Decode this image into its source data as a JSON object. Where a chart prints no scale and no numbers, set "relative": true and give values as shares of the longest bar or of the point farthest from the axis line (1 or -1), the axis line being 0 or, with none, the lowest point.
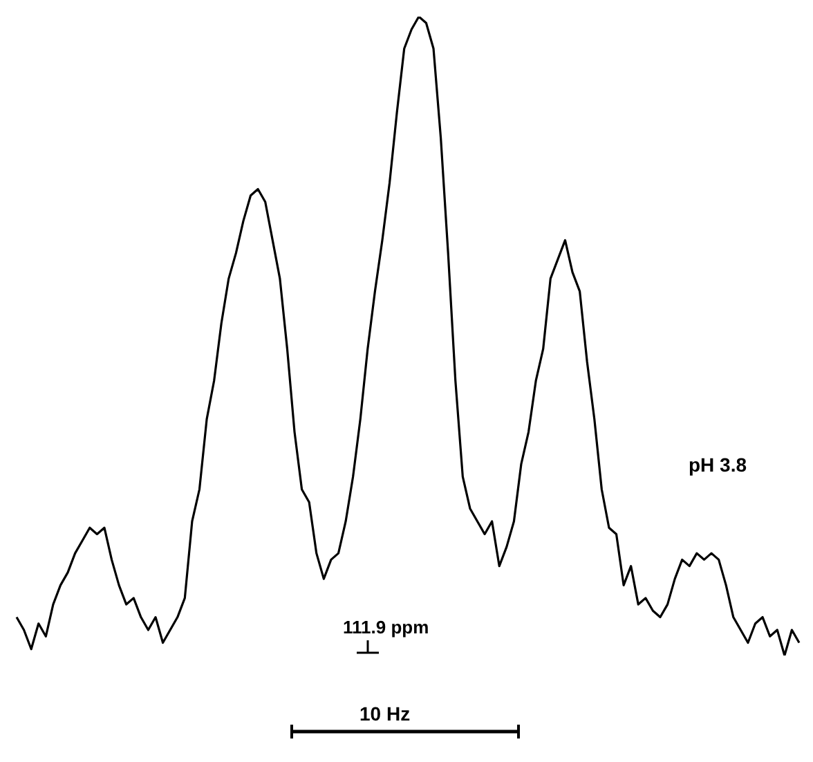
{
  "chart_data": {
    "type": "line",
    "relative": true,
    "categories": [
      null,
      null,
      null,
      null,
      null,
      null,
      null,
      null,
      null,
      null,
      null,
      null,
      null,
      null,
      null,
      null,
      null,
      null,
      null,
      null,
      null,
      null,
      null,
      null,
      null,
      null,
      null,
      null,
      null,
      null,
      null,
      null,
      null,
      null,
      null,
      null,
      null,
      null,
      null,
      null,
      null,
      null,
      null,
      null,
      null,
      null,
      null,
      null,
      null,
      null,
      null,
      null,
      null,
      null,
      null,
      null,
      null,
      null,
      null,
      null,
      null,
      null,
      null,
      null,
      null,
      null,
      null,
      null,
      null,
      null,
      null,
      null,
      null,
      null,
      null,
      null,
      null,
      null,
      null,
      null,
      null,
      null,
      null,
      null,
      null,
      null,
      null,
      null,
      null,
      null,
      null,
      null,
      null,
      null,
      null,
      null,
      null,
      null,
      null,
      null,
      null,
      null,
      null,
      null,
      null,
      null,
      null,
      null
    ],
    "series": [
      {
        "color": "#000000",
        "values": [
          0.06,
          0.04,
          0.01,
          0.05,
          0.03,
          0.08,
          0.11,
          0.13,
          0.16,
          0.18,
          0.2,
          0.19,
          0.2,
          0.15,
          0.11,
          0.08,
          0.09,
          0.06,
          0.04,
          0.06,
          0.02,
          0.04,
          0.06,
          0.09,
          0.21,
          0.26,
          0.37,
          0.43,
          0.52,
          0.59,
          0.63,
          0.68,
          0.72,
          0.73,
          0.71,
          0.65,
          0.59,
          0.48,
          0.35,
          0.26,
          0.24,
          0.16,
          0.12,
          0.15,
          0.16,
          0.21,
          0.28,
          0.37,
          0.48,
          0.57,
          0.65,
          0.74,
          0.85,
          0.95,
          0.98,
          1,
          0.99,
          0.95,
          0.81,
          0.63,
          0.43,
          0.28,
          0.23,
          0.21,
          0.19,
          0.21,
          0.14,
          0.17,
          0.21,
          0.3,
          0.35,
          0.43,
          0.48,
          0.59,
          0.62,
          0.65,
          0.6,
          0.57,
          0.46,
          0.37,
          0.26,
          0.2,
          0.19,
          0.11,
          0.14,
          0.08,
          0.09,
          0.07,
          0.06,
          0.08,
          0.12,
          0.15,
          0.14,
          0.16,
          0.15,
          0.16,
          0.15,
          0.11,
          0.06,
          0.04,
          0.02,
          0.05,
          0.06,
          0.03,
          0.04,
          0,
          0.04,
          0.02
        ]
      }
    ],
    "annotations": [
      "pH 3.8",
      "111.9 ppm",
      "10 Hz"
    ]
  }
}
